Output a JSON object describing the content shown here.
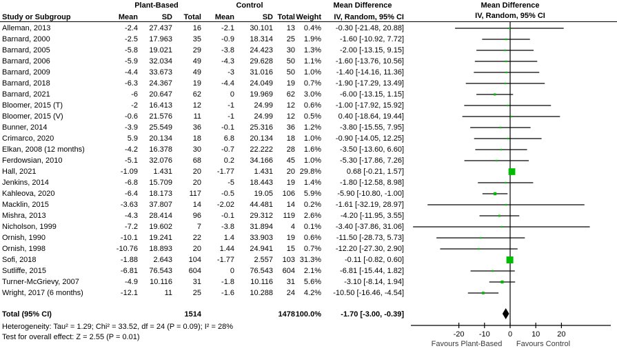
{
  "headers": {
    "group_treatment": "Plant-Based",
    "group_control": "Control",
    "effect_col_title": "Mean Difference",
    "effect_col_method": "IV, Random, 95% CI",
    "plot_col_title": "Mean Difference",
    "plot_col_method": "IV, Random, 95% CI",
    "study": "Study or Subgroup",
    "mean1": "Mean",
    "sd1": "SD",
    "total1": "Total",
    "mean2": "Mean",
    "sd2": "SD",
    "total2": "Total",
    "weight": "Weight"
  },
  "total_row": {
    "label": "Total (95% CI)",
    "n1": "1514",
    "n2": "1478",
    "weight": "100.0%",
    "ci": "-1.70 [-3.00, -0.39]"
  },
  "footer": {
    "heterogeneity": "Heterogeneity: Tau² = 1.29; Chi² = 33.52, df = 24 (P = 0.09); I² = 28%",
    "overall_effect": "Test for overall effect: Z = 2.55 (P = 0.01)"
  },
  "chart_data": {
    "type": "forest",
    "effect_measure": "Mean Difference",
    "method": "IV, Random, 95% CI",
    "marker_color": "#00BC00",
    "summary_color": "#000000",
    "line_color": "#000000",
    "axis": {
      "ticks": [
        -20,
        -10,
        0,
        10,
        20
      ],
      "xlim": [
        -39.5,
        41.5
      ],
      "zero_line": 0,
      "favours_left": "Favours Plant-Based",
      "favours_right": "Favours Control"
    },
    "studies": [
      {
        "name": "Alleman, 2013",
        "mean1": "-2.4",
        "sd1": "27.437",
        "n1": "16",
        "mean2": "-2.1",
        "sd2": "30.101",
        "n2": "13",
        "weight": "0.4%",
        "w": 0.4,
        "ci": "-0.30 [-21.48, 20.88]",
        "est": -0.3,
        "lo": -21.48,
        "hi": 20.88
      },
      {
        "name": "Barnard, 2000",
        "mean1": "-2.5",
        "sd1": "17.963",
        "n1": "35",
        "mean2": "-0.9",
        "sd2": "18.314",
        "n2": "25",
        "weight": "1.9%",
        "w": 1.9,
        "ci": "-1.60 [-10.92, 7.72]",
        "est": -1.6,
        "lo": -10.92,
        "hi": 7.72
      },
      {
        "name": "Barnard, 2005",
        "mean1": "-5.8",
        "sd1": "19.021",
        "n1": "29",
        "mean2": "-3.8",
        "sd2": "24.423",
        "n2": "30",
        "weight": "1.3%",
        "w": 1.3,
        "ci": "-2.00 [-13.15, 9.15]",
        "est": -2.0,
        "lo": -13.15,
        "hi": 9.15
      },
      {
        "name": "Barnard, 2006",
        "mean1": "-5.9",
        "sd1": "32.034",
        "n1": "49",
        "mean2": "-4.3",
        "sd2": "29.628",
        "n2": "50",
        "weight": "1.1%",
        "w": 1.1,
        "ci": "-1.60 [-13.76, 10.56]",
        "est": -1.6,
        "lo": -13.76,
        "hi": 10.56
      },
      {
        "name": "Barnard, 2009",
        "mean1": "-4.4",
        "sd1": "33.673",
        "n1": "49",
        "mean2": "-3",
        "sd2": "31.016",
        "n2": "50",
        "weight": "1.0%",
        "w": 1.0,
        "ci": "-1.40 [-14.16, 11.36]",
        "est": -1.4,
        "lo": -14.16,
        "hi": 11.36
      },
      {
        "name": "Barnard, 2018",
        "mean1": "-6.3",
        "sd1": "24.367",
        "n1": "19",
        "mean2": "-4.4",
        "sd2": "24.049",
        "n2": "19",
        "weight": "0.7%",
        "w": 0.7,
        "ci": "-1.90 [-17.29, 13.49]",
        "est": -1.9,
        "lo": -17.29,
        "hi": 13.49
      },
      {
        "name": "Barnard, 2021",
        "mean1": "-6",
        "sd1": "20.647",
        "n1": "62",
        "mean2": "0",
        "sd2": "19.969",
        "n2": "62",
        "weight": "3.0%",
        "w": 3.0,
        "ci": "-6.00 [-13.15, 1.15]",
        "est": -6.0,
        "lo": -13.15,
        "hi": 1.15
      },
      {
        "name": "Bloomer, 2015 (T)",
        "mean1": "-2",
        "sd1": "16.413",
        "n1": "12",
        "mean2": "-1",
        "sd2": "24.99",
        "n2": "12",
        "weight": "0.6%",
        "w": 0.6,
        "ci": "-1.00 [-17.92, 15.92]",
        "est": -1.0,
        "lo": -17.92,
        "hi": 15.92
      },
      {
        "name": "Bloomer, 2015 (V)",
        "mean1": "-0.6",
        "sd1": "21.576",
        "n1": "11",
        "mean2": "-1",
        "sd2": "24.99",
        "n2": "12",
        "weight": "0.5%",
        "w": 0.5,
        "ci": "0.40 [-18.64, 19.44]",
        "est": 0.4,
        "lo": -18.64,
        "hi": 19.44
      },
      {
        "name": "Bunner, 2014",
        "mean1": "-3.9",
        "sd1": "25.549",
        "n1": "36",
        "mean2": "-0.1",
        "sd2": "25.316",
        "n2": "36",
        "weight": "1.2%",
        "w": 1.2,
        "ci": "-3.80 [-15.55, 7.95]",
        "est": -3.8,
        "lo": -15.55,
        "hi": 7.95
      },
      {
        "name": "Crimarco, 2020",
        "mean1": "5.9",
        "sd1": "20.134",
        "n1": "18",
        "mean2": "6.8",
        "sd2": "20.134",
        "n2": "18",
        "weight": "1.0%",
        "w": 1.0,
        "ci": "-0.90 [-14.05, 12.25]",
        "est": -0.9,
        "lo": -14.05,
        "hi": 12.25
      },
      {
        "name": "Elkan, 2008 (12 months)",
        "mean1": "-4.2",
        "sd1": "16.378",
        "n1": "30",
        "mean2": "-0.7",
        "sd2": "22.222",
        "n2": "28",
        "weight": "1.6%",
        "w": 1.6,
        "ci": "-3.50 [-13.60, 6.60]",
        "est": -3.5,
        "lo": -13.6,
        "hi": 6.6
      },
      {
        "name": "Ferdowsian, 2010",
        "mean1": "-5.1",
        "sd1": "32.076",
        "n1": "68",
        "mean2": "0.2",
        "sd2": "34.166",
        "n2": "45",
        "weight": "1.0%",
        "w": 1.0,
        "ci": "-5.30 [-17.86, 7.26]",
        "est": -5.3,
        "lo": -17.86,
        "hi": 7.26
      },
      {
        "name": "Hall, 2021",
        "mean1": "-1.09",
        "sd1": "1.431",
        "n1": "20",
        "mean2": "-1.77",
        "sd2": "1.431",
        "n2": "20",
        "weight": "29.8%",
        "w": 29.8,
        "ci": "0.68 [-0.21, 1.57]",
        "est": 0.68,
        "lo": -0.21,
        "hi": 1.57
      },
      {
        "name": "Jenkins, 2014",
        "mean1": "-6.8",
        "sd1": "15.709",
        "n1": "20",
        "mean2": "-5",
        "sd2": "18.443",
        "n2": "19",
        "weight": "1.4%",
        "w": 1.4,
        "ci": "-1.80 [-12.58, 8.98]",
        "est": -1.8,
        "lo": -12.58,
        "hi": 8.98
      },
      {
        "name": "Kahleova, 2020",
        "mean1": "-6.4",
        "sd1": "18.173",
        "n1": "117",
        "mean2": "-0.5",
        "sd2": "19.05",
        "n2": "106",
        "weight": "5.9%",
        "w": 5.9,
        "ci": "-5.90 [-10.80, -1.00]",
        "est": -5.9,
        "lo": -10.8,
        "hi": -1.0
      },
      {
        "name": "Macklin, 2015",
        "mean1": "-3.63",
        "sd1": "37.807",
        "n1": "14",
        "mean2": "-2.02",
        "sd2": "44.481",
        "n2": "14",
        "weight": "0.2%",
        "w": 0.2,
        "ci": "-1.61 [-32.19, 28.97]",
        "est": -1.61,
        "lo": -32.19,
        "hi": 28.97
      },
      {
        "name": "Mishra, 2013",
        "mean1": "-4.3",
        "sd1": "28.414",
        "n1": "96",
        "mean2": "-0.1",
        "sd2": "29.312",
        "n2": "119",
        "weight": "2.6%",
        "w": 2.6,
        "ci": "-4.20 [-11.95, 3.55]",
        "est": -4.2,
        "lo": -11.95,
        "hi": 3.55
      },
      {
        "name": "Nicholson, 1999",
        "mean1": "-7.2",
        "sd1": "19.602",
        "n1": "7",
        "mean2": "-3.8",
        "sd2": "31.894",
        "n2": "4",
        "weight": "0.1%",
        "w": 0.1,
        "ci": "-3.40 [-37.86, 31.06]",
        "est": -3.4,
        "lo": -37.86,
        "hi": 31.06
      },
      {
        "name": "Ornish, 1990",
        "mean1": "-10.1",
        "sd1": "19.241",
        "n1": "22",
        "mean2": "1.4",
        "sd2": "33.903",
        "n2": "19",
        "weight": "0.6%",
        "w": 0.6,
        "ci": "-11.50 [-28.73, 5.73]",
        "est": -11.5,
        "lo": -28.73,
        "hi": 5.73
      },
      {
        "name": "Ornish, 1998",
        "mean1": "-10.76",
        "sd1": "18.893",
        "n1": "20",
        "mean2": "1.44",
        "sd2": "24.941",
        "n2": "15",
        "weight": "0.7%",
        "w": 0.7,
        "ci": "-12.20 [-27.30, 2.90]",
        "est": -12.2,
        "lo": -27.3,
        "hi": 2.9
      },
      {
        "name": "Sofi, 2018",
        "mean1": "-1.88",
        "sd1": "2.643",
        "n1": "104",
        "mean2": "-1.77",
        "sd2": "2.557",
        "n2": "103",
        "weight": "31.3%",
        "w": 31.3,
        "ci": "-0.11 [-0.82, 0.60]",
        "est": -0.11,
        "lo": -0.82,
        "hi": 0.6
      },
      {
        "name": "Sutliffe, 2015",
        "mean1": "-6.81",
        "sd1": "76.543",
        "n1": "604",
        "mean2": "0",
        "sd2": "76.543",
        "n2": "604",
        "weight": "2.1%",
        "w": 2.1,
        "ci": "-6.81 [-15.44, 1.82]",
        "est": -6.81,
        "lo": -15.44,
        "hi": 1.82
      },
      {
        "name": "Turner-McGrievy, 2007",
        "mean1": "-4.9",
        "sd1": "10.116",
        "n1": "31",
        "mean2": "-1.8",
        "sd2": "10.116",
        "n2": "31",
        "weight": "5.6%",
        "w": 5.6,
        "ci": "-3.10 [-8.14, 1.94]",
        "est": -3.1,
        "lo": -8.14,
        "hi": 1.94
      },
      {
        "name": "Wright, 2017 (6 months)",
        "mean1": "-12.1",
        "sd1": "11",
        "n1": "25",
        "mean2": "-1.6",
        "sd2": "10.288",
        "n2": "24",
        "weight": "4.2%",
        "w": 4.2,
        "ci": "-10.50 [-16.46, -4.54]",
        "est": -10.5,
        "lo": -16.46,
        "hi": -4.54
      }
    ],
    "total": {
      "label": "Total (95% CI)",
      "est": -1.7,
      "lo": -3.0,
      "hi": -0.39,
      "weight": 100.0
    }
  }
}
